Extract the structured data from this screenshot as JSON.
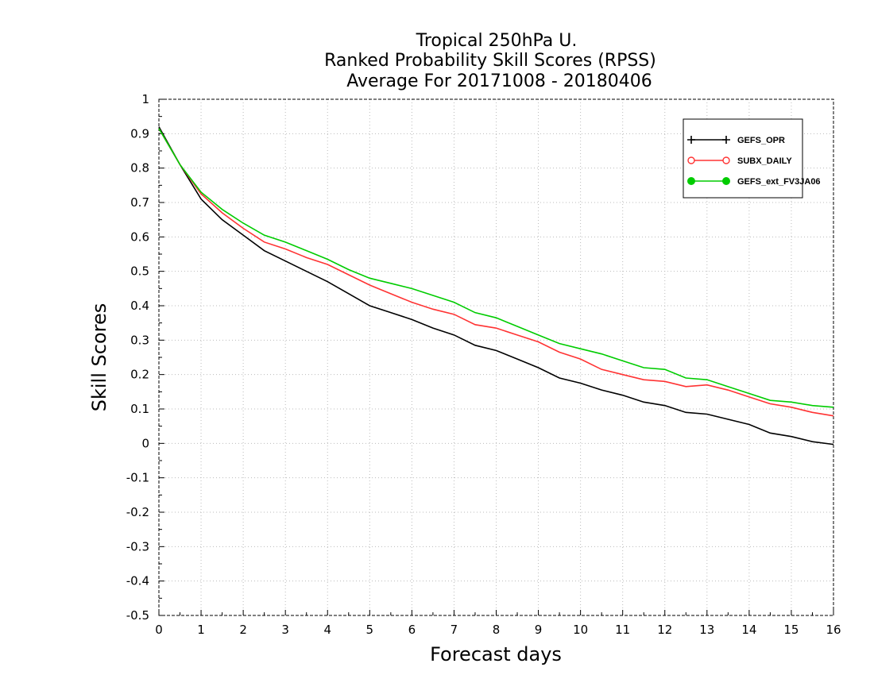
{
  "chart_data": {
    "type": "line",
    "title": [
      "Tropical 250hPa U.",
      "Ranked Probability Skill Scores (RPSS)",
      " Average For 20171008 - 20180406"
    ],
    "xlabel": "Forecast days",
    "ylabel": "Skill Scores",
    "xlim": [
      0,
      16
    ],
    "ylim": [
      -0.5,
      1
    ],
    "x_ticks": [
      "0",
      "1",
      "2",
      "3",
      "4",
      "5",
      "6",
      "7",
      "8",
      "9",
      "10",
      "11",
      "12",
      "13",
      "14",
      "15",
      "16"
    ],
    "y_ticks": [
      "-0.5",
      "-0.4",
      "-0.3",
      "-0.2",
      "-0.1",
      "0",
      "0.1",
      "0.2",
      "0.3",
      "0.4",
      "0.5",
      "0.6",
      "0.7",
      "0.8",
      "0.9",
      "1"
    ],
    "grid": true,
    "legend_position": "top-right",
    "x": [
      0,
      0.5,
      1,
      1.5,
      2,
      2.5,
      3,
      3.5,
      4,
      4.5,
      5,
      5.5,
      6,
      6.5,
      7,
      7.5,
      8,
      8.5,
      9,
      9.5,
      10,
      10.5,
      11,
      11.5,
      12,
      12.5,
      13,
      13.5,
      14,
      14.5,
      15,
      15.5,
      16
    ],
    "series": [
      {
        "name": "GEFS_OPR",
        "color": "#000000",
        "marker": "plus",
        "values": [
          0.92,
          0.81,
          0.71,
          0.65,
          0.605,
          0.56,
          0.53,
          0.5,
          0.47,
          0.435,
          0.4,
          0.38,
          0.36,
          0.335,
          0.315,
          0.285,
          0.27,
          0.245,
          0.22,
          0.19,
          0.175,
          0.155,
          0.14,
          0.12,
          0.11,
          0.09,
          0.085,
          0.07,
          0.055,
          0.03,
          0.02,
          0.005,
          -0.003
        ]
      },
      {
        "name": "SUBX_DAILY",
        "color": "#ff3333",
        "marker": "open-circle",
        "values": [
          0.915,
          0.81,
          0.725,
          0.67,
          0.625,
          0.585,
          0.565,
          0.54,
          0.52,
          0.49,
          0.46,
          0.435,
          0.41,
          0.39,
          0.375,
          0.345,
          0.335,
          0.315,
          0.295,
          0.265,
          0.245,
          0.215,
          0.2,
          0.185,
          0.18,
          0.165,
          0.17,
          0.155,
          0.135,
          0.115,
          0.105,
          0.09,
          0.08
        ]
      },
      {
        "name": "GEFS_ext_FV3JA06",
        "color": "#00cc00",
        "marker": "filled-circle",
        "values": [
          0.915,
          0.81,
          0.73,
          0.68,
          0.64,
          0.605,
          0.585,
          0.56,
          0.535,
          0.505,
          0.48,
          0.465,
          0.45,
          0.43,
          0.41,
          0.38,
          0.365,
          0.34,
          0.315,
          0.29,
          0.275,
          0.26,
          0.24,
          0.22,
          0.215,
          0.19,
          0.185,
          0.165,
          0.145,
          0.125,
          0.12,
          0.11,
          0.105
        ]
      }
    ]
  }
}
